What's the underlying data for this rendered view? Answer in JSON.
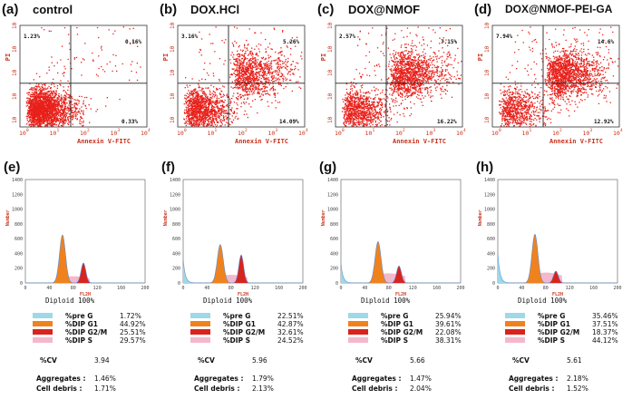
{
  "colors": {
    "dots": "#e8201a",
    "pre_g": "#9fd8e6",
    "g1": "#f0821e",
    "g2m": "#d8241e",
    "s": "#f4b8cc",
    "cell": "#5b8fd8"
  },
  "chart_data": [
    {
      "label": "(a)",
      "title": "control",
      "xlabel": "Annexin V-FITC",
      "ylabel": "PI",
      "q": {
        "ul": "1.23%",
        "ur": "0.16%",
        "ll": "",
        "lr": "0.33%"
      },
      "cycle": {
        "pre_g": "1.72%",
        "g1": "44.92%",
        "g2m": "25.51%",
        "s": "29.57%",
        "cv": "3.94",
        "aggregates": "1.46%",
        "debris": "1.71%"
      },
      "peaks": {
        "debris": 0,
        "g1": 650,
        "g2": 270,
        "s": 90
      }
    },
    {
      "label": "(b)",
      "title": "DOX.HCl",
      "xlabel": "Annexin V-FITC",
      "ylabel": "PI",
      "q": {
        "ul": "3.16%",
        "ur": "5.26%",
        "ll": "",
        "lr": "14.09%"
      },
      "cycle": {
        "pre_g": "22.51%",
        "g1": "42.87%",
        "g2m": "32.61%",
        "s": "24.52%",
        "cv": "5.96",
        "aggregates": "1.79%",
        "debris": "2.13%"
      },
      "peaks": {
        "debris": 320,
        "g1": 520,
        "g2": 380,
        "s": 110
      }
    },
    {
      "label": "(c)",
      "title": "DOX@NMOF",
      "xlabel": "Annexin V-FITC",
      "ylabel": "PI",
      "q": {
        "ul": "2.57%",
        "ur": "7.15%",
        "ll": "",
        "lr": "16.22%"
      },
      "cycle": {
        "pre_g": "25.94%",
        "g1": "39.61%",
        "g2m": "22.08%",
        "s": "38.31%",
        "cv": "5.66",
        "aggregates": "1.47%",
        "debris": "2.04%"
      },
      "peaks": {
        "debris": 260,
        "g1": 560,
        "g2": 230,
        "s": 130
      }
    },
    {
      "label": "(d)",
      "title": "DOX@NMOF-PEI-GA",
      "xlabel": "Annexin V-FITC",
      "ylabel": "PI",
      "q": {
        "ul": "7.94%",
        "ur": "14.6%",
        "ll": "",
        "lr": "12.92%"
      },
      "cycle": {
        "pre_g": "35.46%",
        "g1": "37.51%",
        "g2m": "18.37%",
        "s": "44.12%",
        "cv": "5.61",
        "aggregates": "2.18%",
        "debris": "1.52%"
      },
      "peaks": {
        "debris": 400,
        "g1": 660,
        "g2": 160,
        "s": 140
      }
    }
  ],
  "hist_labels": [
    "(e)",
    "(f)",
    "(g)",
    "(h)"
  ],
  "hist_xlabel": "FL2H",
  "hist_ylabel": "Number",
  "hist_yticks": [
    "0",
    "200",
    "400",
    "600",
    "800",
    "1000",
    "1200",
    "1400"
  ],
  "hist_xticks": [
    "0",
    "40",
    "80",
    "120",
    "160",
    "200"
  ],
  "scatter_xticks": [
    "10",
    "10",
    "10",
    "10",
    "10"
  ],
  "scatter_xexp": [
    "0",
    "1",
    "2",
    "3",
    "4"
  ],
  "scatter_yticks": [
    "10",
    "10",
    "10",
    "10",
    "10"
  ],
  "row_labels": {
    "pre_g": "%pre G",
    "g1": "%DIP G1",
    "g2m": "%DIP G2/M",
    "s": "%DIP S",
    "cv": "%CV",
    "aggregates": "Aggregates :",
    "debris": "Cell debris :"
  },
  "diploid": "Diploid 100%"
}
